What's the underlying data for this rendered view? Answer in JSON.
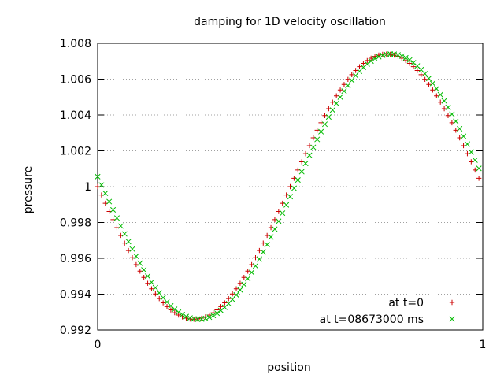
{
  "chart_data": {
    "type": "scatter",
    "title": "damping for 1D velocity oscillation",
    "xlabel": "position",
    "ylabel": "pressure",
    "xlim": [
      0,
      1
    ],
    "ylim": [
      0.992,
      1.008
    ],
    "x_ticks": [
      {
        "value": 0,
        "label": "0"
      },
      {
        "value": 1,
        "label": "1"
      }
    ],
    "y_ticks": [
      {
        "value": 0.992,
        "label": "0.992"
      },
      {
        "value": 0.994,
        "label": "0.994"
      },
      {
        "value": 0.996,
        "label": "0.996"
      },
      {
        "value": 0.998,
        "label": "0.998"
      },
      {
        "value": 1.0,
        "label": "1"
      },
      {
        "value": 1.002,
        "label": "1.002"
      },
      {
        "value": 1.004,
        "label": "1.004"
      },
      {
        "value": 1.006,
        "label": "1.006"
      },
      {
        "value": 1.008,
        "label": "1.008"
      }
    ],
    "grid": {
      "y": true,
      "x": false,
      "style": "dotted"
    },
    "legend_position": "bottom-right",
    "n_points": 100,
    "series": [
      {
        "name": "at t=0",
        "marker": "plus",
        "color": "#cc0000",
        "model": {
          "mean": 1.0,
          "amplitude": 0.0074,
          "phase_offset": 0.0
        },
        "x_start": 0.0,
        "x_end": 0.99,
        "y_min": 0.9926,
        "y_max": 1.0074
      },
      {
        "name": "at t=08673000 ms",
        "marker": "cross",
        "color": "#00bb00",
        "model": {
          "mean": 1.0,
          "amplitude": 0.0074,
          "phase_offset": 0.012
        },
        "x_start": 0.0,
        "x_end": 0.99,
        "y_min": 0.9926,
        "y_max": 1.0074
      }
    ]
  }
}
